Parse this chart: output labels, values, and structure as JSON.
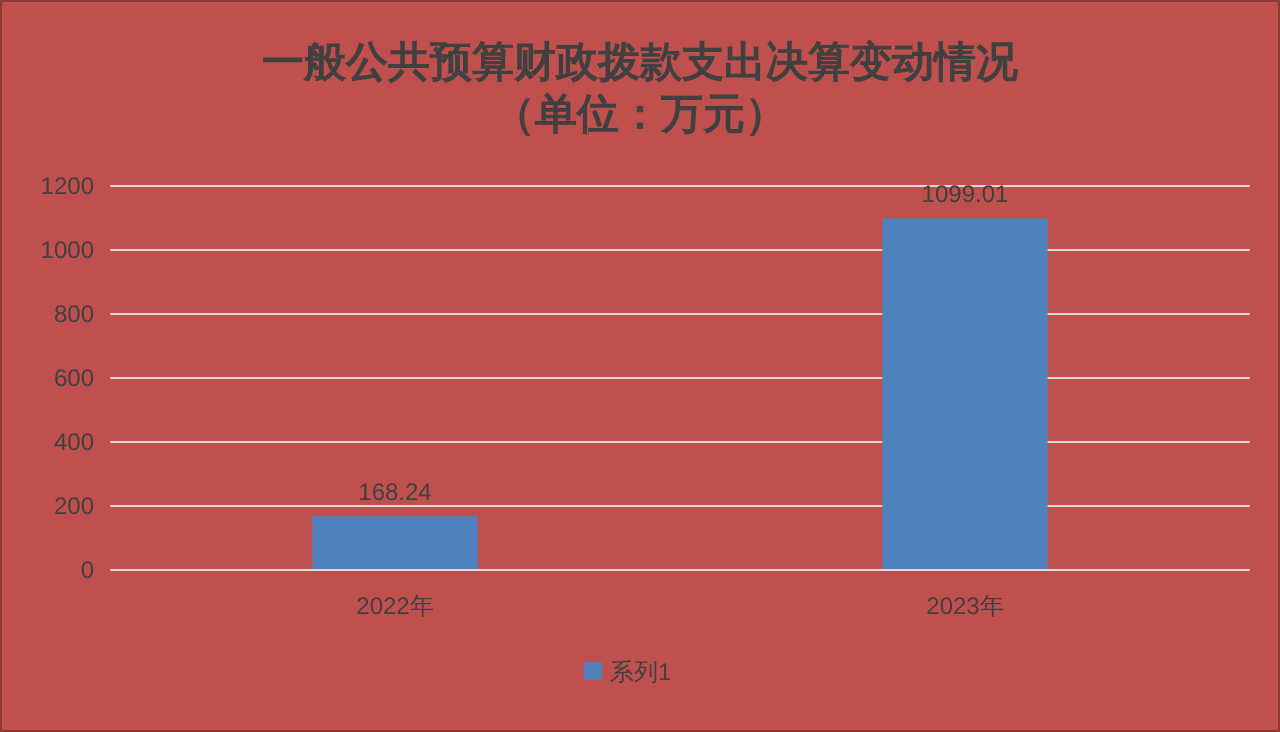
{
  "chart_data": {
    "type": "bar",
    "title": "一般公共预算财政拨款支出决算变动情况",
    "subtitle": "（单位：万元）",
    "categories": [
      "2022年",
      "2023年"
    ],
    "series": [
      {
        "name": "系列1",
        "color": "#4f81bd",
        "values": [
          168.24,
          1099.01
        ]
      }
    ],
    "ylim": [
      0,
      1200
    ],
    "yticks": [
      0,
      200,
      400,
      600,
      800,
      1000,
      1200
    ],
    "grid": "y",
    "legend": "bottom",
    "data_labels": true
  }
}
